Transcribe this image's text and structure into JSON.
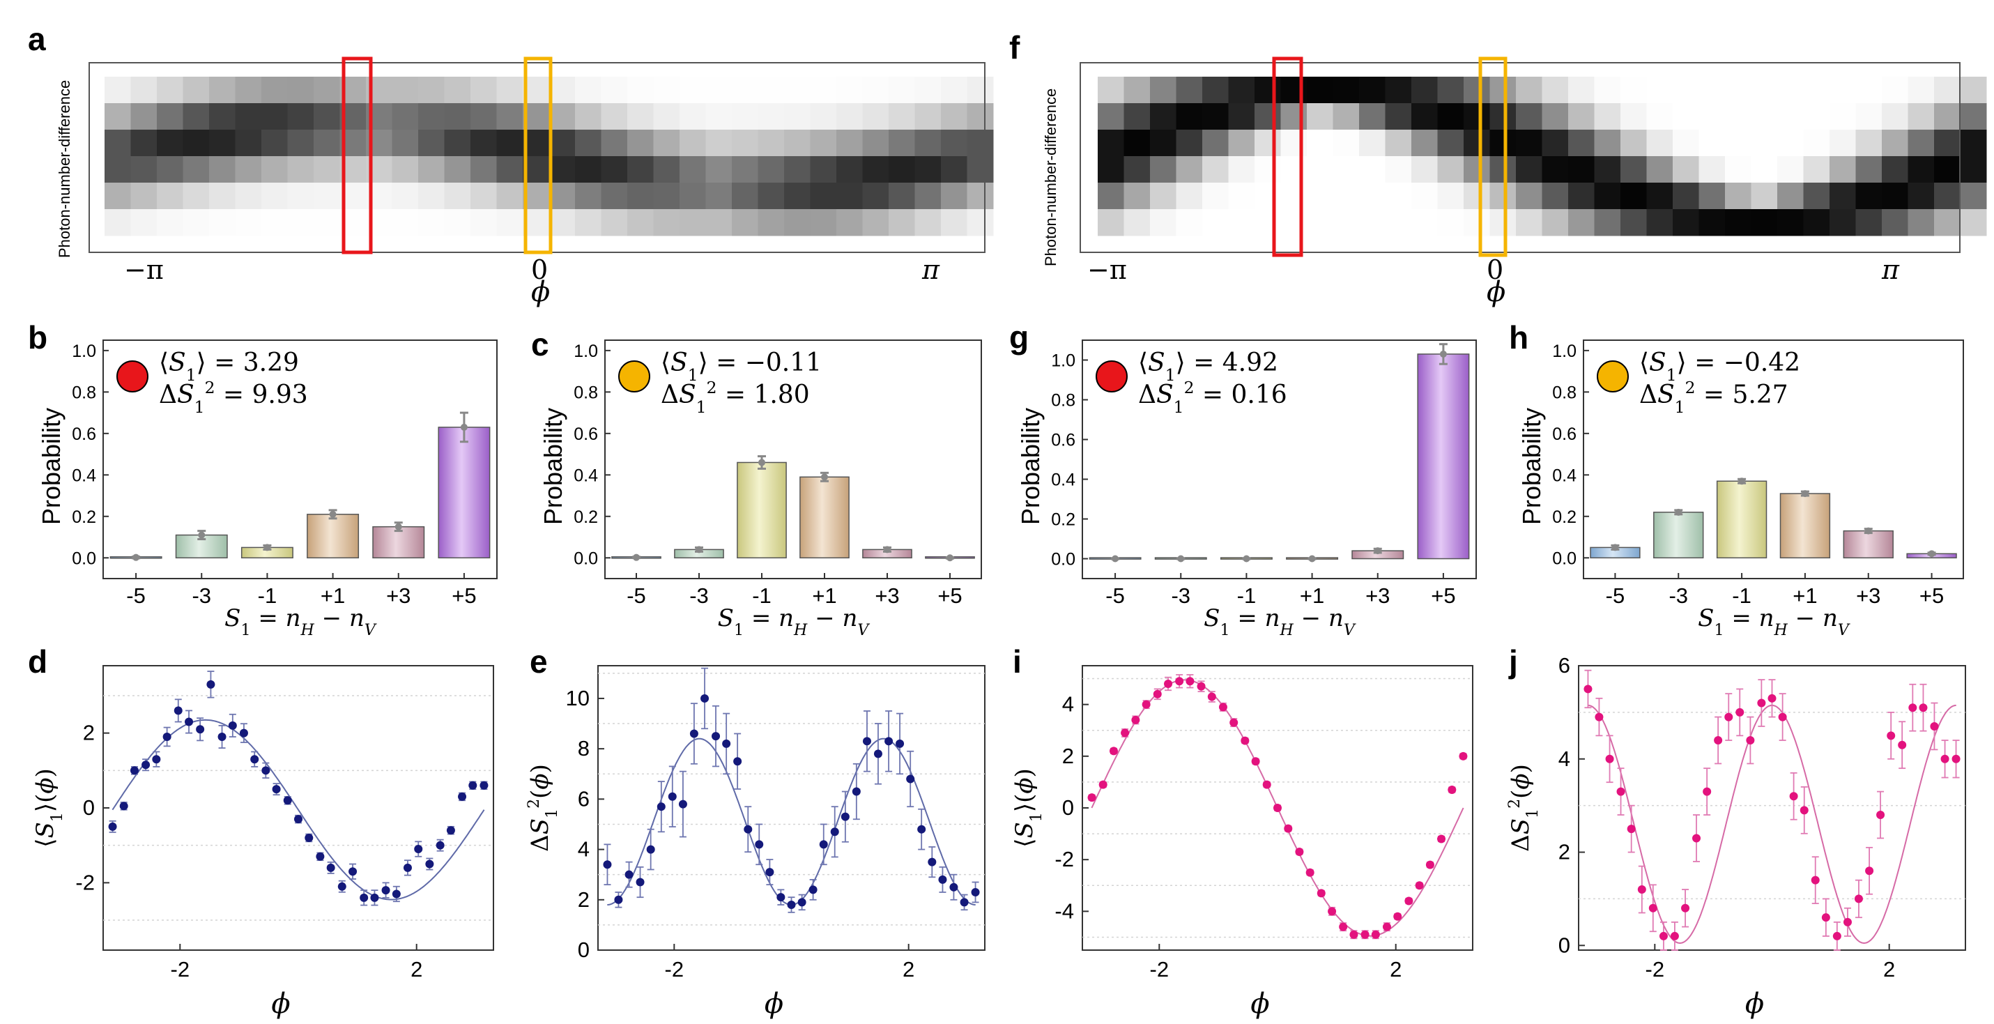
{
  "figure_panels": {
    "a": {
      "letter": "a",
      "ylabel": "Photon-number-difference",
      "xticks": [
        "−π",
        "0",
        "π"
      ],
      "xlabel": "ϕ"
    },
    "f": {
      "letter": "f",
      "ylabel": "Photon-number-difference",
      "xticks": [
        "−π",
        "0",
        "π"
      ],
      "xlabel": "ϕ"
    }
  },
  "colors": {
    "red_marker": "#e8161b",
    "orange_marker": "#f5b400",
    "navy": "#14197a",
    "magenta": "#e3127e",
    "fit_navy": "#5f6aa8",
    "fit_magenta": "#d66aa6"
  },
  "chart_data": [
    {
      "panel": "b",
      "type": "bar",
      "marker_color": "#e8161b",
      "categories": [
        "-5",
        "-3",
        "-1",
        "+1",
        "+3",
        "+5"
      ],
      "values": [
        0.002,
        0.11,
        0.05,
        0.21,
        0.15,
        0.63
      ],
      "errors": [
        0.004,
        0.02,
        0.01,
        0.02,
        0.02,
        0.07
      ],
      "ylim": [
        -0.1,
        1.05
      ],
      "yticks": [
        "0.0",
        "0.2",
        "0.4",
        "0.6",
        "0.8",
        "1.0"
      ],
      "ylabel": "Probability",
      "xlabel": "S₁ = n_H − n_V",
      "annotation": {
        "mean_lhs": "⟨S₁⟩ = ",
        "mean_val": "3.29",
        "var_lhs": "ΔS₁² = ",
        "var_val": "9.93"
      }
    },
    {
      "panel": "c",
      "type": "bar",
      "marker_color": "#f5b400",
      "categories": [
        "-5",
        "-3",
        "-1",
        "+1",
        "+3",
        "+5"
      ],
      "values": [
        0.002,
        0.04,
        0.46,
        0.39,
        0.04,
        0.0
      ],
      "errors": [
        0.003,
        0.01,
        0.03,
        0.02,
        0.01,
        0.003
      ],
      "ylim": [
        -0.1,
        1.05
      ],
      "yticks": [
        "0.0",
        "0.2",
        "0.4",
        "0.6",
        "0.8",
        "1.0"
      ],
      "ylabel": "Probability",
      "xlabel": "S₁ = n_H − n_V",
      "annotation": {
        "mean_lhs": "⟨S₁⟩ = ",
        "mean_val": "−0.11",
        "var_lhs": "ΔS₁² = ",
        "var_val": "1.80"
      }
    },
    {
      "panel": "g",
      "type": "bar",
      "marker_color": "#e8161b",
      "categories": [
        "-5",
        "-3",
        "-1",
        "+1",
        "+3",
        "+5"
      ],
      "values": [
        0.0,
        0.0,
        0.0,
        0.0,
        0.04,
        1.03
      ],
      "errors": [
        0.002,
        0.002,
        0.002,
        0.002,
        0.01,
        0.05
      ],
      "ylim": [
        -0.1,
        1.1
      ],
      "yticks": [
        "0.0",
        "0.2",
        "0.4",
        "0.6",
        "0.8",
        "1.0"
      ],
      "ylabel": "Probability",
      "xlabel": "S₁ = n_H − n_V",
      "annotation": {
        "mean_lhs": "⟨S₁⟩ = ",
        "mean_val": "4.92",
        "var_lhs": "ΔS₁² = ",
        "var_val": "0.16"
      }
    },
    {
      "panel": "h",
      "type": "bar",
      "marker_color": "#f5b400",
      "categories": [
        "-5",
        "-3",
        "-1",
        "+1",
        "+3",
        "+5"
      ],
      "values": [
        0.05,
        0.22,
        0.37,
        0.31,
        0.13,
        0.02
      ],
      "errors": [
        0.01,
        0.01,
        0.01,
        0.01,
        0.01,
        0.005
      ],
      "ylim": [
        -0.1,
        1.05
      ],
      "yticks": [
        "0.0",
        "0.2",
        "0.4",
        "0.6",
        "0.8",
        "1.0"
      ],
      "ylabel": "Probability",
      "xlabel": "S₁ = n_H − n_V",
      "annotation": {
        "mean_lhs": "⟨S₁⟩ = ",
        "mean_val": "−0.42",
        "var_lhs": "ΔS₁² = ",
        "var_val": "5.27"
      }
    },
    {
      "panel": "d",
      "type": "scatter",
      "color": "#14197a",
      "ylabel": "⟨S₁⟩(ϕ)",
      "xlabel": "ϕ",
      "xlim": [
        -3.3,
        3.3
      ],
      "ylim": [
        -3.8,
        3.8
      ],
      "xticks": [
        -2,
        2
      ],
      "yticks": [
        -2,
        0,
        2
      ],
      "fit": {
        "form": "A*sin(x+B)+C",
        "A": 2.4,
        "B": 3.14159,
        "C": -0.05
      },
      "x": [
        -3.14,
        -2.95,
        -2.77,
        -2.58,
        -2.4,
        -2.22,
        -2.03,
        -1.85,
        -1.66,
        -1.48,
        -1.29,
        -1.11,
        -0.92,
        -0.74,
        -0.55,
        -0.37,
        -0.18,
        0.0,
        0.18,
        0.37,
        0.55,
        0.74,
        0.92,
        1.11,
        1.29,
        1.48,
        1.66,
        1.85,
        2.03,
        2.22,
        2.4,
        2.58,
        2.77,
        2.95,
        3.14
      ],
      "y": [
        -0.5,
        0.05,
        1.0,
        1.15,
        1.3,
        1.9,
        2.6,
        2.3,
        2.1,
        3.3,
        1.9,
        2.2,
        2.0,
        1.3,
        1.0,
        0.5,
        0.2,
        -0.3,
        -0.8,
        -1.3,
        -1.6,
        -2.1,
        -1.7,
        -2.4,
        -2.4,
        -2.2,
        -2.3,
        -1.6,
        -1.1,
        -1.5,
        -1.0,
        -0.6,
        0.3,
        0.6,
        0.6
      ],
      "err": [
        0.15,
        0.1,
        0.1,
        0.15,
        0.2,
        0.25,
        0.3,
        0.3,
        0.3,
        0.35,
        0.3,
        0.3,
        0.25,
        0.2,
        0.2,
        0.15,
        0.1,
        0.1,
        0.1,
        0.1,
        0.15,
        0.15,
        0.2,
        0.2,
        0.2,
        0.2,
        0.2,
        0.2,
        0.2,
        0.15,
        0.15,
        0.1,
        0.1,
        0.1,
        0.1
      ]
    },
    {
      "panel": "e",
      "type": "scatter",
      "color": "#14197a",
      "ylabel": "ΔS₁²(ϕ)",
      "xlabel": "ϕ",
      "xlim": [
        -3.3,
        3.3
      ],
      "ylim": [
        0,
        11.3
      ],
      "xticks": [
        -2,
        2
      ],
      "yticks": [
        0,
        2,
        4,
        6,
        8,
        10
      ],
      "fit": {
        "form": "A*cos(2x)+C",
        "A": -3.3,
        "C": 5.1
      },
      "x": [
        -3.14,
        -2.95,
        -2.77,
        -2.58,
        -2.4,
        -2.22,
        -2.03,
        -1.85,
        -1.66,
        -1.48,
        -1.29,
        -1.11,
        -0.92,
        -0.74,
        -0.55,
        -0.37,
        -0.18,
        0.0,
        0.18,
        0.37,
        0.55,
        0.74,
        0.92,
        1.11,
        1.29,
        1.48,
        1.66,
        1.85,
        2.03,
        2.22,
        2.4,
        2.58,
        2.77,
        2.95,
        3.14
      ],
      "y": [
        3.4,
        2.0,
        3.0,
        2.7,
        4.0,
        5.7,
        6.1,
        5.8,
        8.6,
        10.0,
        8.5,
        8.2,
        7.5,
        4.8,
        4.2,
        3.1,
        2.1,
        1.8,
        1.9,
        2.4,
        4.2,
        4.7,
        5.3,
        6.3,
        8.3,
        7.8,
        8.3,
        8.2,
        6.8,
        4.8,
        3.5,
        2.8,
        2.5,
        1.9,
        2.3
      ],
      "err": [
        0.8,
        0.3,
        0.5,
        0.6,
        0.8,
        1.0,
        1.2,
        1.3,
        1.2,
        1.2,
        1.2,
        1.2,
        1.1,
        0.9,
        0.8,
        0.5,
        0.3,
        0.3,
        0.3,
        0.4,
        0.8,
        1.0,
        1.0,
        1.1,
        1.2,
        1.2,
        1.2,
        1.2,
        1.1,
        0.8,
        0.6,
        0.5,
        0.5,
        0.3,
        0.4
      ]
    },
    {
      "panel": "i",
      "type": "scatter",
      "color": "#e3127e",
      "ylabel": "⟨S₁⟩(ϕ)",
      "xlabel": "ϕ",
      "xlim": [
        -3.3,
        3.3
      ],
      "ylim": [
        -5.5,
        5.5
      ],
      "xticks": [
        -2,
        2
      ],
      "yticks": [
        -4,
        -2,
        0,
        2,
        4
      ],
      "fit": {
        "form": "A*sin(x+B)+C",
        "A": 4.95,
        "B": 3.14159,
        "C": 0.0
      },
      "x": [
        -3.14,
        -2.95,
        -2.77,
        -2.58,
        -2.4,
        -2.22,
        -2.03,
        -1.85,
        -1.66,
        -1.48,
        -1.29,
        -1.11,
        -0.92,
        -0.74,
        -0.55,
        -0.37,
        -0.18,
        0.0,
        0.18,
        0.37,
        0.55,
        0.74,
        0.92,
        1.11,
        1.29,
        1.48,
        1.66,
        1.85,
        2.03,
        2.22,
        2.4,
        2.58,
        2.77,
        2.95,
        3.14
      ],
      "y": [
        0.4,
        0.9,
        2.2,
        2.9,
        3.4,
        4.0,
        4.4,
        4.8,
        4.9,
        4.9,
        4.7,
        4.3,
        3.9,
        3.3,
        2.6,
        1.8,
        0.9,
        0.0,
        -0.8,
        -1.7,
        -2.5,
        -3.3,
        -4.0,
        -4.6,
        -4.9,
        -4.9,
        -4.9,
        -4.6,
        -4.2,
        -3.6,
        -3.0,
        -2.2,
        -1.2,
        0.7,
        2.0
      ],
      "err": [
        0.1,
        0.1,
        0.1,
        0.15,
        0.15,
        0.15,
        0.2,
        0.25,
        0.25,
        0.25,
        0.2,
        0.2,
        0.15,
        0.15,
        0.1,
        0.1,
        0.1,
        0.1,
        0.1,
        0.1,
        0.1,
        0.1,
        0.15,
        0.15,
        0.15,
        0.15,
        0.15,
        0.15,
        0.1,
        0.1,
        0.1,
        0.1,
        0.1,
        0.1,
        0.1
      ]
    },
    {
      "panel": "j",
      "type": "scatter",
      "color": "#e3127e",
      "ylabel": "ΔS₁²(ϕ)",
      "xlabel": "ϕ",
      "xlim": [
        -3.3,
        3.3
      ],
      "ylim": [
        -0.1,
        6.0
      ],
      "xticks": [
        -2,
        2
      ],
      "yticks": [
        0,
        2,
        4,
        6
      ],
      "fit": {
        "form": "A*cos(2x)+C",
        "A": 2.55,
        "C": 2.6
      },
      "x": [
        -3.14,
        -2.95,
        -2.77,
        -2.58,
        -2.4,
        -2.22,
        -2.03,
        -1.85,
        -1.66,
        -1.48,
        -1.29,
        -1.11,
        -0.92,
        -0.74,
        -0.55,
        -0.37,
        -0.18,
        0.0,
        0.18,
        0.37,
        0.55,
        0.74,
        0.92,
        1.11,
        1.29,
        1.48,
        1.66,
        1.85,
        2.03,
        2.22,
        2.4,
        2.58,
        2.77,
        2.95,
        3.14
      ],
      "y": [
        5.5,
        4.9,
        4.0,
        3.3,
        2.5,
        1.2,
        0.8,
        0.2,
        0.2,
        0.8,
        2.3,
        3.3,
        4.4,
        4.9,
        5.0,
        4.4,
        5.2,
        5.3,
        4.9,
        3.2,
        2.9,
        1.4,
        0.6,
        0.2,
        0.5,
        1.0,
        1.6,
        2.8,
        4.5,
        4.3,
        5.1,
        5.1,
        4.7,
        4.0,
        4.0
      ],
      "err": [
        0.4,
        0.4,
        0.5,
        0.5,
        0.5,
        0.5,
        0.5,
        0.3,
        0.3,
        0.4,
        0.5,
        0.5,
        0.5,
        0.5,
        0.5,
        0.5,
        0.5,
        0.4,
        0.5,
        0.5,
        0.5,
        0.5,
        0.4,
        0.3,
        0.3,
        0.4,
        0.5,
        0.5,
        0.5,
        0.5,
        0.5,
        0.5,
        0.5,
        0.4,
        0.4
      ]
    }
  ]
}
